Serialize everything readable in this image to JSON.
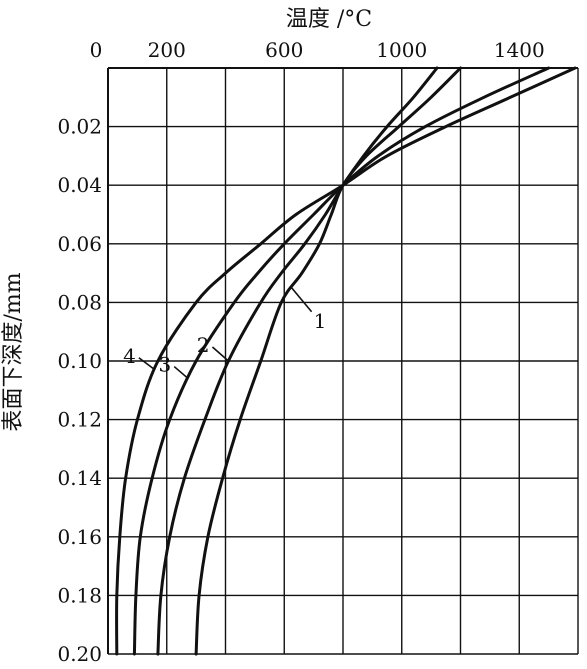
{
  "chart_data": {
    "type": "line",
    "title": "",
    "xlabel": "温度 /°C",
    "ylabel": "表面下深度/mm",
    "x_axis_position": "top",
    "y_axis_inverted": true,
    "xlim": [
      0,
      1600
    ],
    "ylim": [
      0,
      0.2
    ],
    "x_grid_step": 200,
    "y_grid_step": 0.02,
    "grid": true,
    "x_ticks": [
      "0",
      "200",
      "600",
      "1000",
      "1400"
    ],
    "y_ticks": [
      "0.02",
      "0.04",
      "0.06",
      "0.08",
      "0.10",
      "0.12",
      "0.14",
      "0.16",
      "0.18",
      "0.20"
    ],
    "series": [
      {
        "name": "1",
        "points": [
          [
            1200,
            0
          ],
          [
            1100,
            0.01
          ],
          [
            990,
            0.02
          ],
          [
            880,
            0.03
          ],
          [
            800,
            0.04
          ],
          [
            760,
            0.05
          ],
          [
            720,
            0.06
          ],
          [
            660,
            0.07
          ],
          [
            590,
            0.08
          ],
          [
            520,
            0.1
          ],
          [
            450,
            0.12
          ],
          [
            390,
            0.14
          ],
          [
            340,
            0.16
          ],
          [
            310,
            0.18
          ],
          [
            300,
            0.2
          ]
        ]
      },
      {
        "name": "2",
        "points": [
          [
            1120,
            0
          ],
          [
            1040,
            0.01
          ],
          [
            950,
            0.02
          ],
          [
            870,
            0.03
          ],
          [
            800,
            0.04
          ],
          [
            740,
            0.05
          ],
          [
            670,
            0.06
          ],
          [
            590,
            0.07
          ],
          [
            520,
            0.08
          ],
          [
            410,
            0.1
          ],
          [
            330,
            0.12
          ],
          [
            260,
            0.14
          ],
          [
            210,
            0.16
          ],
          [
            180,
            0.18
          ],
          [
            170,
            0.2
          ]
        ]
      },
      {
        "name": "3",
        "points": [
          [
            1500,
            0
          ],
          [
            1280,
            0.01
          ],
          [
            1080,
            0.02
          ],
          [
            920,
            0.03
          ],
          [
            800,
            0.04
          ],
          [
            700,
            0.05
          ],
          [
            600,
            0.06
          ],
          [
            510,
            0.07
          ],
          [
            430,
            0.08
          ],
          [
            300,
            0.1
          ],
          [
            210,
            0.12
          ],
          [
            150,
            0.14
          ],
          [
            110,
            0.16
          ],
          [
            95,
            0.18
          ],
          [
            90,
            0.2
          ]
        ]
      },
      {
        "name": "4",
        "points": [
          [
            1590,
            0
          ],
          [
            1370,
            0.01
          ],
          [
            1150,
            0.02
          ],
          [
            950,
            0.03
          ],
          [
            800,
            0.04
          ],
          [
            640,
            0.05
          ],
          [
            520,
            0.06
          ],
          [
            400,
            0.07
          ],
          [
            300,
            0.08
          ],
          [
            170,
            0.1
          ],
          [
            100,
            0.12
          ],
          [
            60,
            0.14
          ],
          [
            40,
            0.16
          ],
          [
            30,
            0.18
          ],
          [
            30,
            0.2
          ]
        ]
      }
    ]
  }
}
